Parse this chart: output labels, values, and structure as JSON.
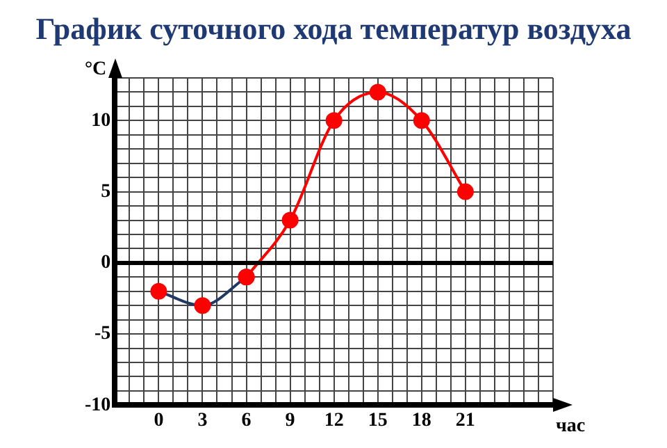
{
  "chart_data": {
    "type": "line",
    "title": "График суточного хода температур воздуха",
    "xlabel": "час",
    "ylabel": "°C",
    "series": [
      {
        "color": "#1f3864",
        "x": [
          0,
          3,
          6
        ],
        "values": [
          -2,
          -3,
          -1
        ]
      },
      {
        "color": "#ff0000",
        "x": [
          6,
          9,
          12,
          15,
          18,
          21
        ],
        "values": [
          -1,
          3,
          10,
          12,
          10,
          5
        ]
      }
    ],
    "xlim": [
      -3,
      27
    ],
    "ylim": [
      -10,
      13
    ],
    "xticks": [
      {
        "value": -3,
        "label": null
      },
      {
        "value": -2,
        "label": null
      },
      {
        "value": -1,
        "label": null
      },
      0,
      {
        "value": 1,
        "label": null
      },
      {
        "value": 2,
        "label": null
      },
      3,
      {
        "value": 4,
        "label": null
      },
      {
        "value": 5,
        "label": null
      },
      6,
      {
        "value": 7,
        "label": null
      },
      {
        "value": 8,
        "label": null
      },
      9,
      {
        "value": 10,
        "label": null
      },
      {
        "value": 11,
        "label": null
      },
      12,
      {
        "value": 13,
        "label": null
      },
      {
        "value": 14,
        "label": null
      },
      15,
      {
        "value": 16,
        "label": null
      },
      {
        "value": 17,
        "label": null
      },
      18,
      {
        "value": 19,
        "label": null
      },
      {
        "value": 20,
        "label": null
      },
      21,
      {
        "value": 22,
        "label": null
      },
      {
        "value": 23,
        "label": null
      },
      {
        "value": 24,
        "label": null
      },
      {
        "value": 25,
        "label": null
      },
      {
        "value": 26,
        "label": null
      },
      {
        "value": 27,
        "label": null
      }
    ],
    "yticks": [
      -10,
      {
        "value": -9,
        "label": null
      },
      {
        "value": -8,
        "label": null
      },
      {
        "value": -7,
        "label": null
      },
      {
        "value": -6,
        "label": null
      },
      -5,
      {
        "value": -4,
        "label": null
      },
      {
        "value": -3,
        "label": null
      },
      {
        "value": -2,
        "label": null
      },
      {
        "value": -1,
        "label": null
      },
      0,
      {
        "value": 1,
        "label": null
      },
      {
        "value": 2,
        "label": null
      },
      {
        "value": 3,
        "label": null
      },
      {
        "value": 4,
        "label": null
      },
      5,
      {
        "value": 6,
        "label": null
      },
      {
        "value": 7,
        "label": null
      },
      {
        "value": 8,
        "label": null
      },
      {
        "value": 9,
        "label": null
      },
      10,
      {
        "value": 11,
        "label": null
      },
      {
        "value": 12,
        "label": null
      },
      {
        "value": 13,
        "label": null
      }
    ],
    "ref_lines": [
      {
        "axis": "y",
        "value": 0,
        "color": "#000000"
      }
    ],
    "grid": true,
    "legend": false,
    "marker": "circle",
    "line_style": "solid"
  }
}
